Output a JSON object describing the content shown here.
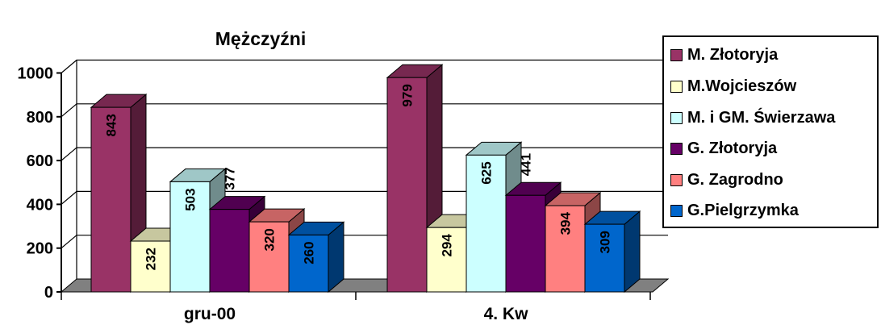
{
  "chart_data": {
    "type": "bar",
    "title": "Mężczyźni",
    "categories": [
      "gru-00",
      "4. Kw"
    ],
    "ylim": [
      0,
      1000
    ],
    "yticks": [
      "0",
      "200",
      "400",
      "600",
      "800",
      "1000"
    ],
    "grid": "horizontal",
    "legend_position": "right",
    "series": [
      {
        "name": "M. Złotoryja",
        "values": [
          843,
          979
        ],
        "color": "#993366",
        "labels": [
          "843",
          "979"
        ]
      },
      {
        "name": "M.Wojcieszów",
        "values": [
          232,
          294
        ],
        "color": "#FFFFCC",
        "labels": [
          "232",
          "294"
        ]
      },
      {
        "name": "M. i GM. Świerzawa",
        "values": [
          503,
          625
        ],
        "color": "#CCFFFF",
        "labels": [
          "503",
          "625"
        ]
      },
      {
        "name": "G. Złotoryja",
        "values": [
          377,
          441
        ],
        "color": "#660066",
        "labels": [
          "377",
          "441"
        ]
      },
      {
        "name": "G. Zagrodno",
        "values": [
          320,
          394
        ],
        "color": "#FF8080",
        "labels": [
          "320",
          "394"
        ]
      },
      {
        "name": "G.Pielgrzymka",
        "values": [
          260,
          309
        ],
        "color": "#0066CC",
        "labels": [
          "260",
          "309"
        ]
      }
    ]
  }
}
